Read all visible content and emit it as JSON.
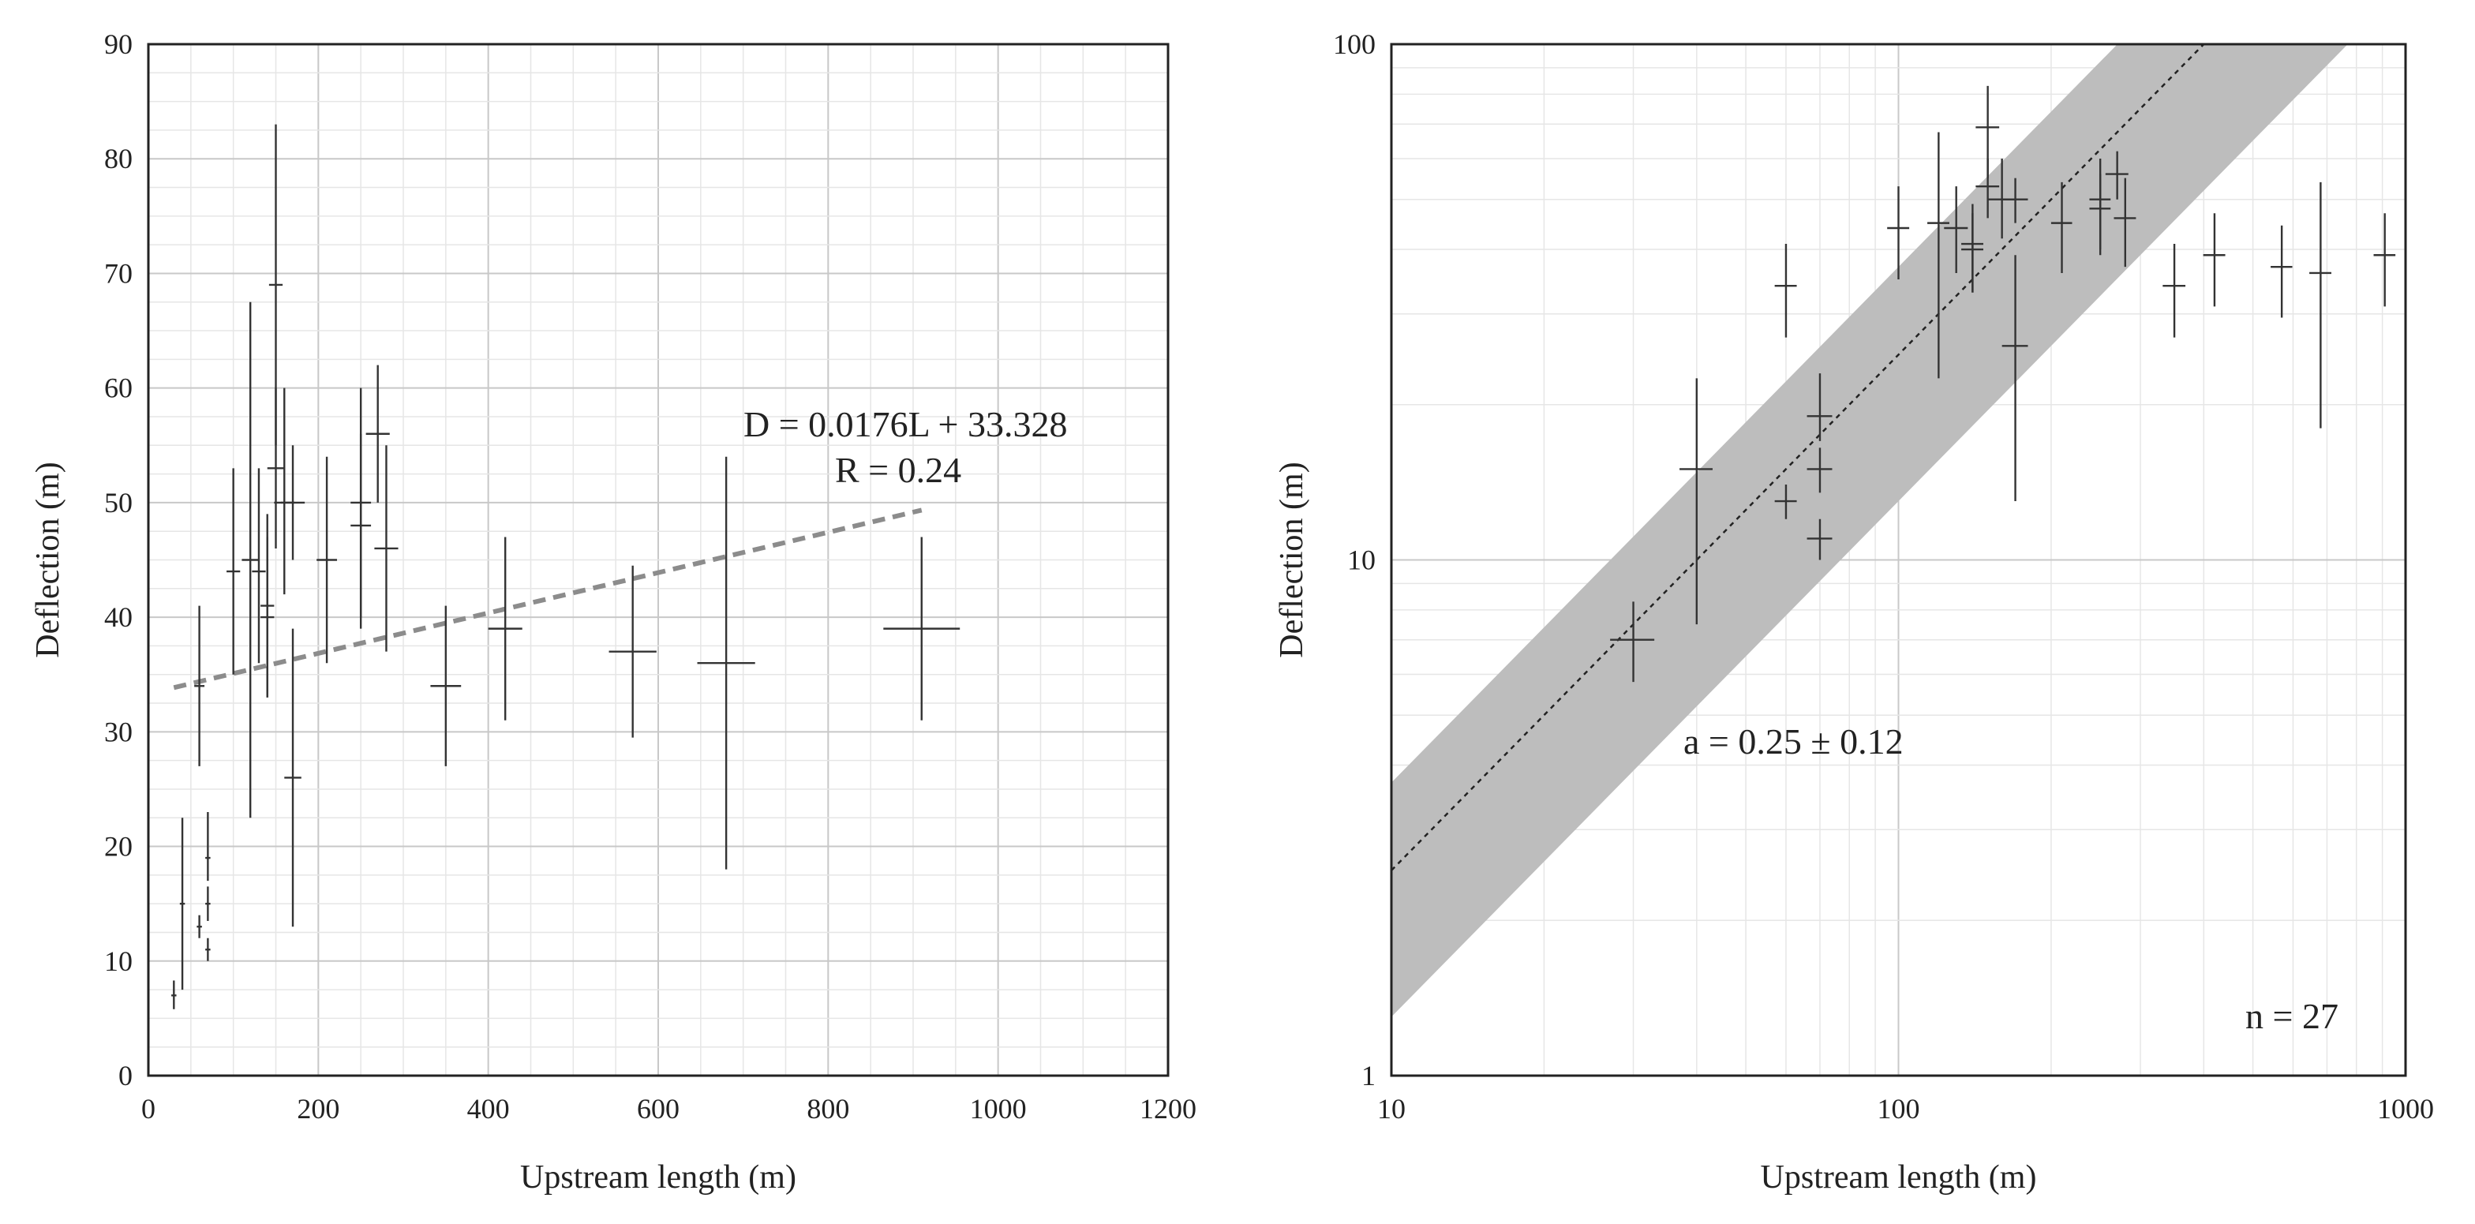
{
  "chart_data": [
    {
      "type": "scatter",
      "title": "",
      "xlabel": "Upstream length (m)",
      "ylabel": "Deflection (m)",
      "xscale": "linear",
      "yscale": "linear",
      "xlim": [
        0,
        1200
      ],
      "ylim": [
        0,
        90
      ],
      "xticks": [
        0,
        200,
        400,
        600,
        800,
        1000,
        1200
      ],
      "yticks": [
        0,
        10,
        20,
        30,
        40,
        50,
        60,
        70,
        80,
        90
      ],
      "grid": true,
      "series": [
        {
          "name": "observations",
          "points": [
            {
              "x": 30,
              "y": 7,
              "xerr": 3,
              "ylo": 5.8,
              "yhi": 8.3
            },
            {
              "x": 40,
              "y": 15,
              "xerr": 3,
              "ylo": 7.5,
              "yhi": 22.5
            },
            {
              "x": 60,
              "y": 13,
              "xerr": 3,
              "ylo": 12,
              "yhi": 14
            },
            {
              "x": 60,
              "y": 34,
              "xerr": 6,
              "ylo": 27,
              "yhi": 41
            },
            {
              "x": 70,
              "y": 11,
              "xerr": 3,
              "ylo": 10,
              "yhi": 12
            },
            {
              "x": 70,
              "y": 15,
              "xerr": 3,
              "ylo": 13.5,
              "yhi": 16.5
            },
            {
              "x": 70,
              "y": 19,
              "xerr": 3,
              "ylo": 17,
              "yhi": 23
            },
            {
              "x": 100,
              "y": 44,
              "xerr": 8,
              "ylo": 35,
              "yhi": 53
            },
            {
              "x": 120,
              "y": 45,
              "xerr": 10,
              "ylo": 22.5,
              "yhi": 67.5
            },
            {
              "x": 130,
              "y": 44,
              "xerr": 8,
              "ylo": 36,
              "yhi": 53
            },
            {
              "x": 140,
              "y": 41,
              "xerr": 8,
              "ylo": 33,
              "yhi": 49
            },
            {
              "x": 140,
              "y": 40,
              "xerr": 8,
              "ylo": 33,
              "yhi": 47
            },
            {
              "x": 150,
              "y": 69,
              "xerr": 8,
              "ylo": 55,
              "yhi": 83
            },
            {
              "x": 150,
              "y": 53,
              "xerr": 10,
              "ylo": 46,
              "yhi": 60
            },
            {
              "x": 160,
              "y": 50,
              "xerr": 12,
              "ylo": 42,
              "yhi": 60
            },
            {
              "x": 170,
              "y": 50,
              "xerr": 14,
              "ylo": 45,
              "yhi": 55
            },
            {
              "x": 170,
              "y": 26,
              "xerr": 10,
              "ylo": 13,
              "yhi": 39
            },
            {
              "x": 210,
              "y": 45,
              "xerr": 12,
              "ylo": 36,
              "yhi": 54
            },
            {
              "x": 250,
              "y": 50,
              "xerr": 12,
              "ylo": 39,
              "yhi": 60
            },
            {
              "x": 250,
              "y": 48,
              "xerr": 12,
              "ylo": 40,
              "yhi": 56
            },
            {
              "x": 270,
              "y": 56,
              "xerr": 14,
              "ylo": 50,
              "yhi": 62
            },
            {
              "x": 280,
              "y": 46,
              "xerr": 14,
              "ylo": 37,
              "yhi": 55
            },
            {
              "x": 350,
              "y": 34,
              "xerr": 18,
              "ylo": 27,
              "yhi": 41
            },
            {
              "x": 420,
              "y": 39,
              "xerr": 20,
              "ylo": 31,
              "yhi": 47
            },
            {
              "x": 570,
              "y": 37,
              "xerr": 28,
              "ylo": 29.5,
              "yhi": 44.5
            },
            {
              "x": 680,
              "y": 36,
              "xerr": 34,
              "ylo": 18,
              "yhi": 54
            },
            {
              "x": 910,
              "y": 39,
              "xerr": 45,
              "ylo": 31,
              "yhi": 47
            }
          ]
        }
      ],
      "trendline": {
        "slope": 0.0176,
        "intercept": 33.328,
        "x_from": 30,
        "x_to": 910,
        "style": "dashed",
        "color": "#8c8c8c"
      },
      "annotations": [
        "D = 0.0176L  + 33.328",
        "R = 0.24"
      ]
    },
    {
      "type": "scatter",
      "title": "",
      "xlabel": "Upstream length (m)",
      "ylabel": "Deflection (m)",
      "xscale": "log",
      "yscale": "log",
      "xlim": [
        10,
        1000
      ],
      "ylim": [
        1,
        100
      ],
      "xticks": [
        10,
        100,
        1000
      ],
      "yticks": [
        1,
        10,
        100
      ],
      "grid": true,
      "series": [
        {
          "name": "observations",
          "points": [
            {
              "x": 30,
              "y": 7,
              "xerr": 3,
              "ylo": 5.8,
              "yhi": 8.3
            },
            {
              "x": 40,
              "y": 15,
              "xerr": 3,
              "ylo": 7.5,
              "yhi": 22.5
            },
            {
              "x": 60,
              "y": 13,
              "xerr": 3,
              "ylo": 12,
              "yhi": 14
            },
            {
              "x": 60,
              "y": 34,
              "xerr": 3,
              "ylo": 27,
              "yhi": 41
            },
            {
              "x": 70,
              "y": 11,
              "xerr": 4,
              "ylo": 10,
              "yhi": 12
            },
            {
              "x": 70,
              "y": 15,
              "xerr": 4,
              "ylo": 13.5,
              "yhi": 16.5
            },
            {
              "x": 70,
              "y": 19,
              "xerr": 4,
              "ylo": 17,
              "yhi": 23
            },
            {
              "x": 100,
              "y": 44,
              "xerr": 5,
              "ylo": 35,
              "yhi": 53
            },
            {
              "x": 120,
              "y": 45,
              "xerr": 6,
              "ylo": 22.5,
              "yhi": 67.5
            },
            {
              "x": 130,
              "y": 44,
              "xerr": 7,
              "ylo": 36,
              "yhi": 53
            },
            {
              "x": 140,
              "y": 41,
              "xerr": 7,
              "ylo": 33,
              "yhi": 49
            },
            {
              "x": 140,
              "y": 40,
              "xerr": 7,
              "ylo": 33,
              "yhi": 47
            },
            {
              "x": 150,
              "y": 69,
              "xerr": 8,
              "ylo": 55,
              "yhi": 83
            },
            {
              "x": 150,
              "y": 53,
              "xerr": 8,
              "ylo": 46,
              "yhi": 60
            },
            {
              "x": 160,
              "y": 50,
              "xerr": 10,
              "ylo": 42,
              "yhi": 60
            },
            {
              "x": 170,
              "y": 50,
              "xerr": 10,
              "ylo": 45,
              "yhi": 55
            },
            {
              "x": 170,
              "y": 26,
              "xerr": 10,
              "ylo": 13,
              "yhi": 39
            },
            {
              "x": 210,
              "y": 45,
              "xerr": 10,
              "ylo": 36,
              "yhi": 54
            },
            {
              "x": 250,
              "y": 50,
              "xerr": 12,
              "ylo": 39,
              "yhi": 60
            },
            {
              "x": 250,
              "y": 48,
              "xerr": 12,
              "ylo": 40,
              "yhi": 56
            },
            {
              "x": 270,
              "y": 56,
              "xerr": 14,
              "ylo": 50,
              "yhi": 62
            },
            {
              "x": 280,
              "y": 46,
              "xerr": 14,
              "ylo": 37,
              "yhi": 55
            },
            {
              "x": 350,
              "y": 34,
              "xerr": 18,
              "ylo": 27,
              "yhi": 41
            },
            {
              "x": 420,
              "y": 39,
              "xerr": 21,
              "ylo": 31,
              "yhi": 47
            },
            {
              "x": 570,
              "y": 37,
              "xerr": 28,
              "ylo": 29.5,
              "yhi": 44.5
            },
            {
              "x": 680,
              "y": 36,
              "xerr": 34,
              "ylo": 18,
              "yhi": 54
            },
            {
              "x": 910,
              "y": 39,
              "xerr": 45,
              "ylo": 31,
              "yhi": 47
            }
          ]
        }
      ],
      "trendline": {
        "a": 0.25,
        "a_err": 0.12,
        "x_from": 10,
        "x_to": 1000,
        "style": "dotted",
        "band_color": "#bdbdbd"
      },
      "annotations": [
        "a = 0.25 ± 0.12",
        "n = 27"
      ]
    }
  ]
}
